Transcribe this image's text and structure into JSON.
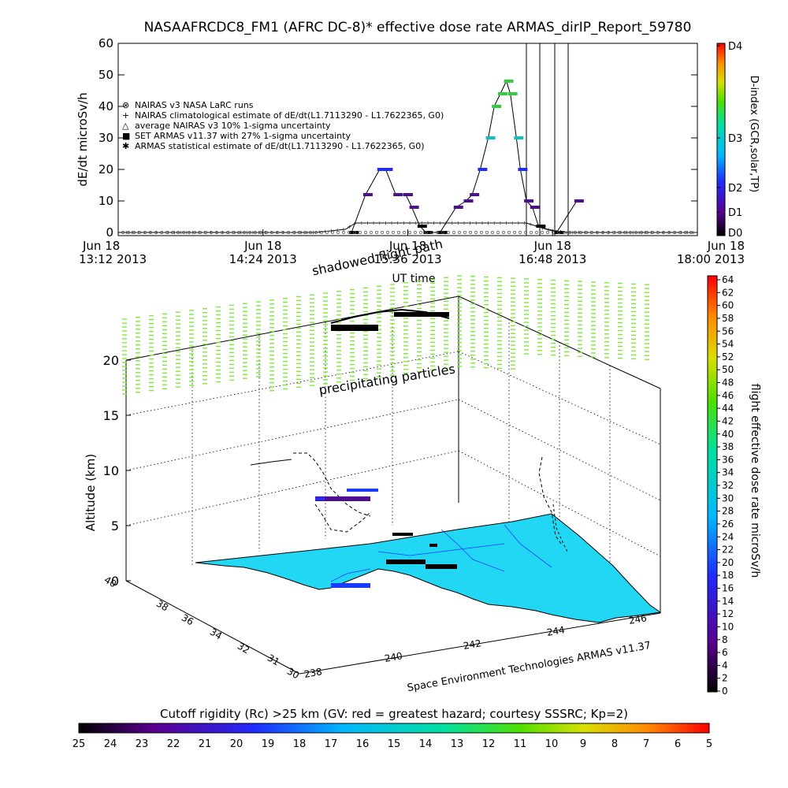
{
  "title": "NASAAFRCDC8_FM1 (AFRC DC-8)* effective dose rate ARMAS_dirIP_Report_59780",
  "top_chart": {
    "ylabel": "dE/dt microSv/h",
    "xlabel": "UT time",
    "y_ticks": [
      "0",
      "10",
      "20",
      "30",
      "40",
      "50",
      "60"
    ],
    "ylim": [
      0,
      60
    ],
    "x_ticks": [
      {
        "date": "Jun 18",
        "time": "13:12 2013"
      },
      {
        "date": "Jun 18",
        "time": "14:24 2013"
      },
      {
        "date": "Jun 18",
        "time": "15:36 2013"
      },
      {
        "date": "Jun 18",
        "time": "16:48 2013"
      },
      {
        "date": "Jun 18",
        "time": "18:00 2013"
      }
    ],
    "legend": [
      {
        "symbol": "⊗",
        "label": "NAIRAS v3 NASA LaRC runs"
      },
      {
        "symbol": "+",
        "label": "NAIRAS climatological estimate of dE/dt(L1.7113290 - L1.7622365, G0)"
      },
      {
        "symbol": "△",
        "label": "average NAIRAS v3 10% 1-sigma uncertainty"
      },
      {
        "symbol": "■",
        "label": "SET ARMAS v11.37 with 27% 1-sigma uncertainty",
        "color": "#1a3cff"
      },
      {
        "symbol": "✱",
        "label": "ARMAS statistical estimate of dE/dt(L1.7113290 - L1.7622365, G0)"
      }
    ],
    "dindex_label": "D-index (GCR,solar,TP)",
    "dindex_ticks": [
      "D0",
      "D1",
      "D2",
      "D3",
      "D4"
    ]
  },
  "chart_data": [
    {
      "type": "line",
      "title": "NASAAFRCDC8_FM1 (AFRC DC-8)* effective dose rate ARMAS_dirIP_Report_59780",
      "xlabel": "UT time",
      "ylabel": "dE/dt microSv/h",
      "xlim": [
        "13:12",
        "18:00"
      ],
      "ylim": [
        0,
        60
      ],
      "series": [
        {
          "name": "SET ARMAS v11.37 with 27% 1-sigma uncertainty",
          "x": [
            "15:08",
            "15:15",
            "15:22",
            "15:25",
            "15:30",
            "15:35",
            "15:38",
            "15:42",
            "15:45",
            "15:52",
            "16:00",
            "16:05",
            "16:08",
            "16:12",
            "16:16",
            "16:19",
            "16:22",
            "16:25",
            "16:27",
            "16:30",
            "16:32",
            "16:35",
            "16:38",
            "16:41",
            "16:50",
            "17:00"
          ],
          "y": [
            0,
            12,
            20,
            20,
            12,
            12,
            8,
            2,
            0,
            0,
            8,
            10,
            12,
            20,
            30,
            40,
            44,
            48,
            44,
            30,
            20,
            10,
            8,
            2,
            0,
            10
          ]
        },
        {
          "name": "NAIRAS climatological estimate of dE/dt(L1.7113290 - L1.7622365, G0)",
          "x": [
            "13:12",
            "14:50",
            "15:05",
            "15:10",
            "16:35",
            "16:45",
            "16:55",
            "18:00"
          ],
          "y": [
            0,
            0,
            1,
            3,
            3,
            1,
            0,
            0
          ]
        }
      ]
    },
    {
      "type": "scatter",
      "title": "",
      "xlabel": "",
      "ylabel": "Altitude (km)",
      "zlim": [
        0,
        20
      ],
      "z_ticks": [
        "0",
        "5",
        "10",
        "15",
        "20"
      ],
      "x_ticks": [
        "238",
        "240",
        "242",
        "244",
        "246"
      ],
      "y_ticks": [
        "30",
        "31",
        "32",
        "34",
        "36",
        "38",
        "40"
      ]
    }
  ],
  "plot3d": {
    "zlabel": "Altitude (km)",
    "z_ticks": [
      "0",
      "5",
      "10",
      "15",
      "20"
    ],
    "lon_ticks": [
      "238",
      "240",
      "242",
      "244",
      "246"
    ],
    "lat_ticks": [
      "30",
      "31",
      "32",
      "34",
      "36",
      "38",
      "40"
    ],
    "annotation_precip": "precipitating particles",
    "annotation_shadow": "shadowed flight path",
    "credit": "Space Environment Technologies ARMAS v11.37",
    "colorbar_label": "flight effective dose rate microSv/h",
    "colorbar_ticks": [
      "0",
      "2",
      "4",
      "6",
      "8",
      "10",
      "12",
      "14",
      "16",
      "18",
      "20",
      "22",
      "24",
      "26",
      "28",
      "30",
      "32",
      "34",
      "36",
      "38",
      "40",
      "42",
      "44",
      "46",
      "48",
      "50",
      "52",
      "54",
      "56",
      "58",
      "60",
      "62",
      "64"
    ]
  },
  "bottom_bar": {
    "title": "Cutoff rigidity (Rc) >25 km (GV: red = greatest hazard; courtesy SSSRC; Kp=2)",
    "ticks": [
      "25",
      "24",
      "23",
      "22",
      "21",
      "20",
      "19",
      "18",
      "17",
      "16",
      "15",
      "14",
      "13",
      "12",
      "11",
      "10",
      "9",
      "8",
      "7",
      "6",
      "5"
    ]
  },
  "colors": {
    "precip": "#7de83c",
    "land": "#21d7f4",
    "marker_blue": "#1a3cff"
  }
}
